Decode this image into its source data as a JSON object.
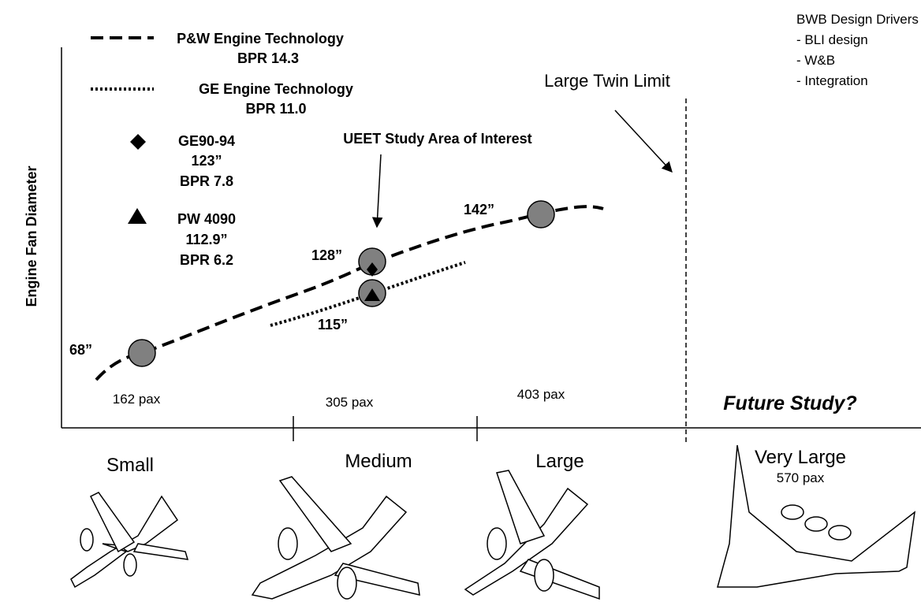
{
  "axis": {
    "y_label": "Engine Fan Diameter"
  },
  "legend": [
    {
      "lines": [
        "P&W Engine Technology",
        "BPR 14.3"
      ]
    },
    {
      "lines": [
        "GE Engine Technology",
        "BPR 11.0"
      ]
    },
    {
      "lines": [
        "GE90-94",
        "123”",
        "BPR 7.8"
      ]
    },
    {
      "lines": [
        "PW 4090",
        "112.9”",
        "BPR 6.2"
      ]
    }
  ],
  "annotations": {
    "study_area": "UEET Study Area of Interest",
    "twin_limit": "Large Twin Limit",
    "future": "Future Study?",
    "bwb": [
      "BWB Design Drivers",
      "- BLI design",
      "- W&B",
      "- Integration"
    ]
  },
  "points": [
    "68”",
    "128”",
    "115”",
    "142”"
  ],
  "pax": [
    "162 pax",
    "305 pax",
    "403 pax"
  ],
  "categories": [
    "Small",
    "Medium",
    "Large",
    "Very Large"
  ],
  "very_large_pax": "570 pax"
}
